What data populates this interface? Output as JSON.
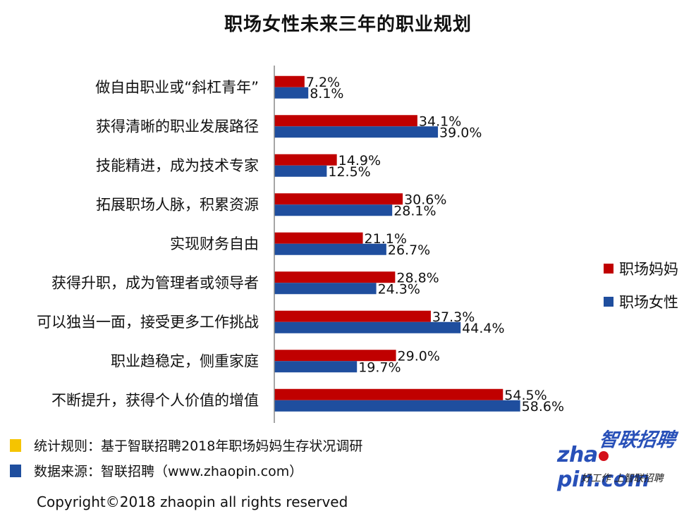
{
  "title": "职场女性未来三年的职业规划",
  "chart_data": {
    "type": "bar",
    "orientation": "horizontal",
    "categories": [
      "做自由职业或“斜杠青年”",
      "获得清晰的职业发展路径",
      "技能精进，成为技术专家",
      "拓展职场人脉，积累资源",
      "实现财务自由",
      "获得升职，成为管理者或领导者",
      "可以独当一面，接受更多工作挑战",
      "职业趋稳定，侧重家庭",
      "不断提升，获得个人价值的增值"
    ],
    "series": [
      {
        "name": "职场妈妈",
        "color": "#c00000",
        "values": [
          7.2,
          34.1,
          14.9,
          30.6,
          21.1,
          28.8,
          37.3,
          29.0,
          54.5
        ],
        "labels": [
          "7.2%",
          "34.1%",
          "14.9%",
          "30.6%",
          "21.1%",
          "28.8%",
          "37.3%",
          "29.0%",
          "54.5%"
        ]
      },
      {
        "name": "职场女性",
        "color": "#1f4e9e",
        "values": [
          8.1,
          39.0,
          12.5,
          28.1,
          26.7,
          24.3,
          44.4,
          19.7,
          58.6
        ],
        "labels": [
          "8.1%",
          "39.0%",
          "12.5%",
          "28.1%",
          "26.7%",
          "24.3%",
          "44.4%",
          "19.7%",
          "58.6%"
        ]
      }
    ],
    "legend_position": "right",
    "grid": false
  },
  "notes": [
    {
      "text": "统计规则：基于智联招聘2018年职场妈妈生存状况调研",
      "color": "#f5c400"
    },
    {
      "text": "数据来源：智联招聘（www.zhaopin.com）",
      "color": "#1f4e9e"
    }
  ],
  "logo": {
    "cn": "智联招聘",
    "en_left": "zha",
    "en_right": "pin.com",
    "slogan": "好工作  上智联招聘"
  },
  "copyright": "Copyright©2018 zhaopin all rights reserved"
}
